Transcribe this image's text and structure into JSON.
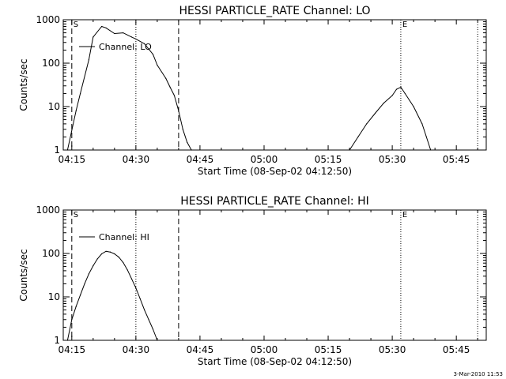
{
  "chart_data": [
    {
      "type": "line",
      "title": "HESSI PARTICLE_RATE Channel: LO",
      "xlabel": "Start Time (08-Sep-02 04:12:50)",
      "ylabel": "Counts/sec",
      "yscale": "log",
      "ylim": [
        1,
        1000
      ],
      "xlim": [
        "04:13",
        "05:52"
      ],
      "x_ticks": [
        "04:15",
        "04:30",
        "04:45",
        "05:00",
        "05:15",
        "05:30",
        "05:45"
      ],
      "y_ticks": [
        "1",
        "10",
        "100",
        "1000"
      ],
      "grid": false,
      "legend_position": "top-left",
      "series": [
        {
          "name": "Channel: LO",
          "x": [
            "04:14",
            "04:16",
            "04:17",
            "04:19",
            "04:20",
            "04:22",
            "04:23",
            "04:25",
            "04:27",
            "04:29",
            "04:30",
            "04:32",
            "04:34",
            "04:35",
            "04:37",
            "04:38",
            "04:39",
            "04:40",
            "04:41",
            "04:42",
            "04:43",
            "05:20",
            "05:22",
            "05:24",
            "05:26",
            "05:28",
            "05:30",
            "05:31",
            "05:32",
            "05:33",
            "05:35",
            "05:37",
            "05:38",
            "05:39"
          ],
          "y": [
            1,
            8,
            20,
            120,
            400,
            700,
            650,
            480,
            500,
            400,
            360,
            280,
            160,
            90,
            45,
            28,
            18,
            8,
            3,
            1.5,
            1,
            1,
            2,
            4,
            7,
            12,
            18,
            25,
            28,
            20,
            10,
            4,
            2,
            1
          ]
        }
      ],
      "annotations": {
        "start_marker": "S",
        "end_marker": "E",
        "dashed_lines": [
          "04:15",
          "04:40"
        ],
        "dotted_lines": [
          "04:30",
          "05:32",
          "05:50"
        ]
      }
    },
    {
      "type": "line",
      "title": "HESSI PARTICLE_RATE Channel: HI",
      "xlabel": "Start Time (08-Sep-02 04:12:50)",
      "ylabel": "Counts/sec",
      "yscale": "log",
      "ylim": [
        1,
        1000
      ],
      "xlim": [
        "04:13",
        "05:52"
      ],
      "x_ticks": [
        "04:15",
        "04:30",
        "04:45",
        "05:00",
        "05:15",
        "05:30",
        "05:45"
      ],
      "y_ticks": [
        "1",
        "10",
        "100",
        "1000"
      ],
      "grid": false,
      "legend_position": "top-left",
      "series": [
        {
          "name": "Channel: HI",
          "x": [
            "04:14",
            "04:15",
            "04:16",
            "04:17",
            "04:18",
            "04:19",
            "04:20",
            "04:21",
            "04:22",
            "04:23",
            "04:24",
            "04:25",
            "04:26",
            "04:27",
            "04:28",
            "04:29",
            "04:30",
            "04:31",
            "04:32",
            "04:33",
            "04:34",
            "04:35"
          ],
          "y": [
            1,
            3,
            6,
            11,
            20,
            34,
            52,
            75,
            98,
            112,
            108,
            98,
            82,
            62,
            42,
            26,
            16,
            9,
            5,
            3,
            1.8,
            1
          ]
        }
      ],
      "annotations": {
        "start_marker": "S",
        "end_marker": "E",
        "dashed_lines": [
          "04:15",
          "04:40"
        ],
        "dotted_lines": [
          "04:30",
          "05:32",
          "05:50"
        ]
      }
    }
  ],
  "footer": {
    "timestamp": "3-Mar-2010 11:53"
  },
  "colors": {
    "axes": "#000000",
    "background": "#ffffff"
  }
}
